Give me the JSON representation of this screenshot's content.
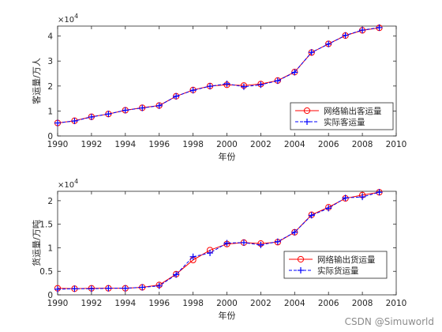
{
  "chart_data": [
    {
      "type": "line",
      "title": "",
      "xlabel": "年份",
      "ylabel": "客运量/万人",
      "y_multiplier_label": "×10",
      "y_multiplier_exp": "4",
      "xlim": [
        1990,
        2010
      ],
      "ylim": [
        0,
        4.4
      ],
      "xticks": [
        1990,
        1992,
        1994,
        1996,
        1998,
        2000,
        2002,
        2004,
        2006,
        2008,
        2010
      ],
      "yticks": [
        0,
        1,
        2,
        3,
        4
      ],
      "legend_position": "right-middle",
      "grid": false,
      "series": [
        {
          "name": "网络输出客运量",
          "color": "#ff0000",
          "marker": "circle",
          "line_style": "solid",
          "x": [
            1990,
            1991,
            1992,
            1993,
            1994,
            1995,
            1996,
            1997,
            1998,
            1999,
            2000,
            2001,
            2002,
            2003,
            2004,
            2005,
            2006,
            2007,
            2008,
            2009
          ],
          "values": [
            0.52,
            0.61,
            0.77,
            0.88,
            1.03,
            1.13,
            1.22,
            1.59,
            1.84,
            2.0,
            2.05,
            2.02,
            2.08,
            2.22,
            2.56,
            3.34,
            3.69,
            4.02,
            4.23,
            4.33
          ]
        },
        {
          "name": "实际客运量",
          "color": "#0000ff",
          "marker": "plus",
          "line_style": "dashed",
          "x": [
            1990,
            1991,
            1992,
            1993,
            1994,
            1995,
            1996,
            1997,
            1998,
            1999,
            2000,
            2001,
            2002,
            2003,
            2004,
            2005,
            2006,
            2007,
            2008,
            2009
          ],
          "values": [
            0.52,
            0.6,
            0.76,
            0.88,
            1.03,
            1.12,
            1.21,
            1.59,
            1.83,
            1.99,
            2.09,
            1.97,
            2.05,
            2.21,
            2.55,
            3.35,
            3.68,
            4.03,
            4.24,
            4.34
          ]
        }
      ]
    },
    {
      "type": "line",
      "title": "",
      "xlabel": "年份",
      "ylabel": "货运量/万吨",
      "y_multiplier_label": "×10",
      "y_multiplier_exp": "4",
      "xlim": [
        1990,
        2010
      ],
      "ylim": [
        0,
        2.2
      ],
      "xticks": [
        1990,
        1992,
        1994,
        1996,
        1998,
        2000,
        2002,
        2004,
        2006,
        2008,
        2010
      ],
      "yticks": [
        0,
        0.5,
        1,
        1.5,
        2
      ],
      "ytick_labels": [
        "0",
        "0.5",
        "1",
        "1.5",
        "2"
      ],
      "legend_position": "bottom-right",
      "grid": false,
      "series": [
        {
          "name": "网络输出货运量",
          "color": "#ff0000",
          "marker": "circle",
          "line_style": "solid",
          "x": [
            1990,
            1991,
            1992,
            1993,
            1994,
            1995,
            1996,
            1997,
            1998,
            1999,
            2000,
            2001,
            2002,
            2003,
            2004,
            2005,
            2006,
            2007,
            2008,
            2009
          ],
          "values": [
            0.14,
            0.13,
            0.14,
            0.14,
            0.14,
            0.16,
            0.21,
            0.44,
            0.74,
            0.95,
            1.08,
            1.11,
            1.09,
            1.12,
            1.33,
            1.7,
            1.86,
            2.05,
            2.12,
            2.18
          ]
        },
        {
          "name": "实际货运量",
          "color": "#0000ff",
          "marker": "plus",
          "line_style": "dashed",
          "x": [
            1990,
            1991,
            1992,
            1993,
            1994,
            1995,
            1996,
            1997,
            1998,
            1999,
            2000,
            2001,
            2002,
            2003,
            2004,
            2005,
            2006,
            2007,
            2008,
            2009
          ],
          "values": [
            0.12,
            0.13,
            0.13,
            0.14,
            0.14,
            0.16,
            0.19,
            0.43,
            0.81,
            0.89,
            1.1,
            1.11,
            1.06,
            1.13,
            1.33,
            1.69,
            1.84,
            2.06,
            2.08,
            2.18
          ]
        }
      ]
    }
  ],
  "watermark": "CSDN @Simuworld"
}
